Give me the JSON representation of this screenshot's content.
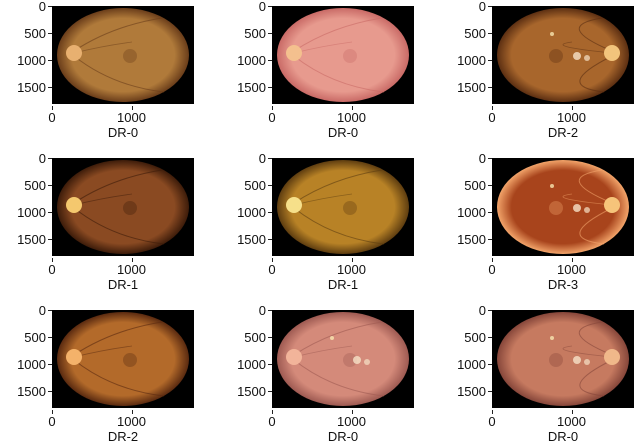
{
  "panels": [
    {
      "label": "DR-0",
      "y_ticks": [
        "0",
        "500",
        "1000",
        "1500"
      ],
      "x_ticks": [
        "0",
        "1000"
      ],
      "tint": "#b07a3a",
      "rim": "#6a3d1a",
      "disc_side": "left",
      "disc": "#e8b070",
      "spots": false
    },
    {
      "label": "DR-0",
      "y_ticks": [
        "0",
        "500",
        "1000",
        "1500"
      ],
      "x_ticks": [
        "0",
        "1000"
      ],
      "tint": "#e79a8e",
      "rim": "#c96a66",
      "disc_side": "left",
      "disc": "#f4c08e",
      "spots": false
    },
    {
      "label": "DR-2",
      "y_ticks": [
        "0",
        "500",
        "1000",
        "1500"
      ],
      "x_ticks": [
        "0",
        "1000"
      ],
      "tint": "#a8662c",
      "rim": "#5c2f12",
      "disc_side": "right",
      "disc": "#f2c47c",
      "spots": true
    },
    {
      "label": "DR-1",
      "y_ticks": [
        "0",
        "500",
        "1000",
        "1500"
      ],
      "x_ticks": [
        "0",
        "1000"
      ],
      "tint": "#8a4a22",
      "rim": "#3d1c0a",
      "disc_side": "left",
      "disc": "#f4c86e",
      "spots": false
    },
    {
      "label": "DR-1",
      "y_ticks": [
        "0",
        "500",
        "1000",
        "1500"
      ],
      "x_ticks": [
        "0",
        "1000"
      ],
      "tint": "#b88226",
      "rim": "#5e3d10",
      "disc_side": "left",
      "disc": "#f6e08a",
      "spots": false
    },
    {
      "label": "DR-3",
      "y_ticks": [
        "0",
        "500",
        "1000",
        "1500"
      ],
      "x_ticks": [
        "0",
        "1000"
      ],
      "tint": "#a8441c",
      "rim": "#f2a46a",
      "disc_side": "right",
      "disc": "#f6c47a",
      "spots": true
    },
    {
      "label": "DR-2",
      "y_ticks": [
        "0",
        "500",
        "1000",
        "1500"
      ],
      "x_ticks": [
        "0",
        "1000"
      ],
      "tint": "#b36a2a",
      "rim": "#5a2a10",
      "disc_side": "left",
      "disc": "#f4b26a",
      "spots": false
    },
    {
      "label": "DR-0",
      "y_ticks": [
        "0",
        "500",
        "1000",
        "1500"
      ],
      "x_ticks": [
        "0",
        "1000"
      ],
      "tint": "#d48a7a",
      "rim": "#9e5a52",
      "disc_side": "left",
      "disc": "#f2b49a",
      "spots": true
    },
    {
      "label": "DR-0",
      "y_ticks": [
        "0",
        "500",
        "1000",
        "1500"
      ],
      "x_ticks": [
        "0",
        "1000"
      ],
      "tint": "#c67a60",
      "rim": "#86463a",
      "disc_side": "right",
      "disc": "#f0b88a",
      "spots": true
    }
  ]
}
